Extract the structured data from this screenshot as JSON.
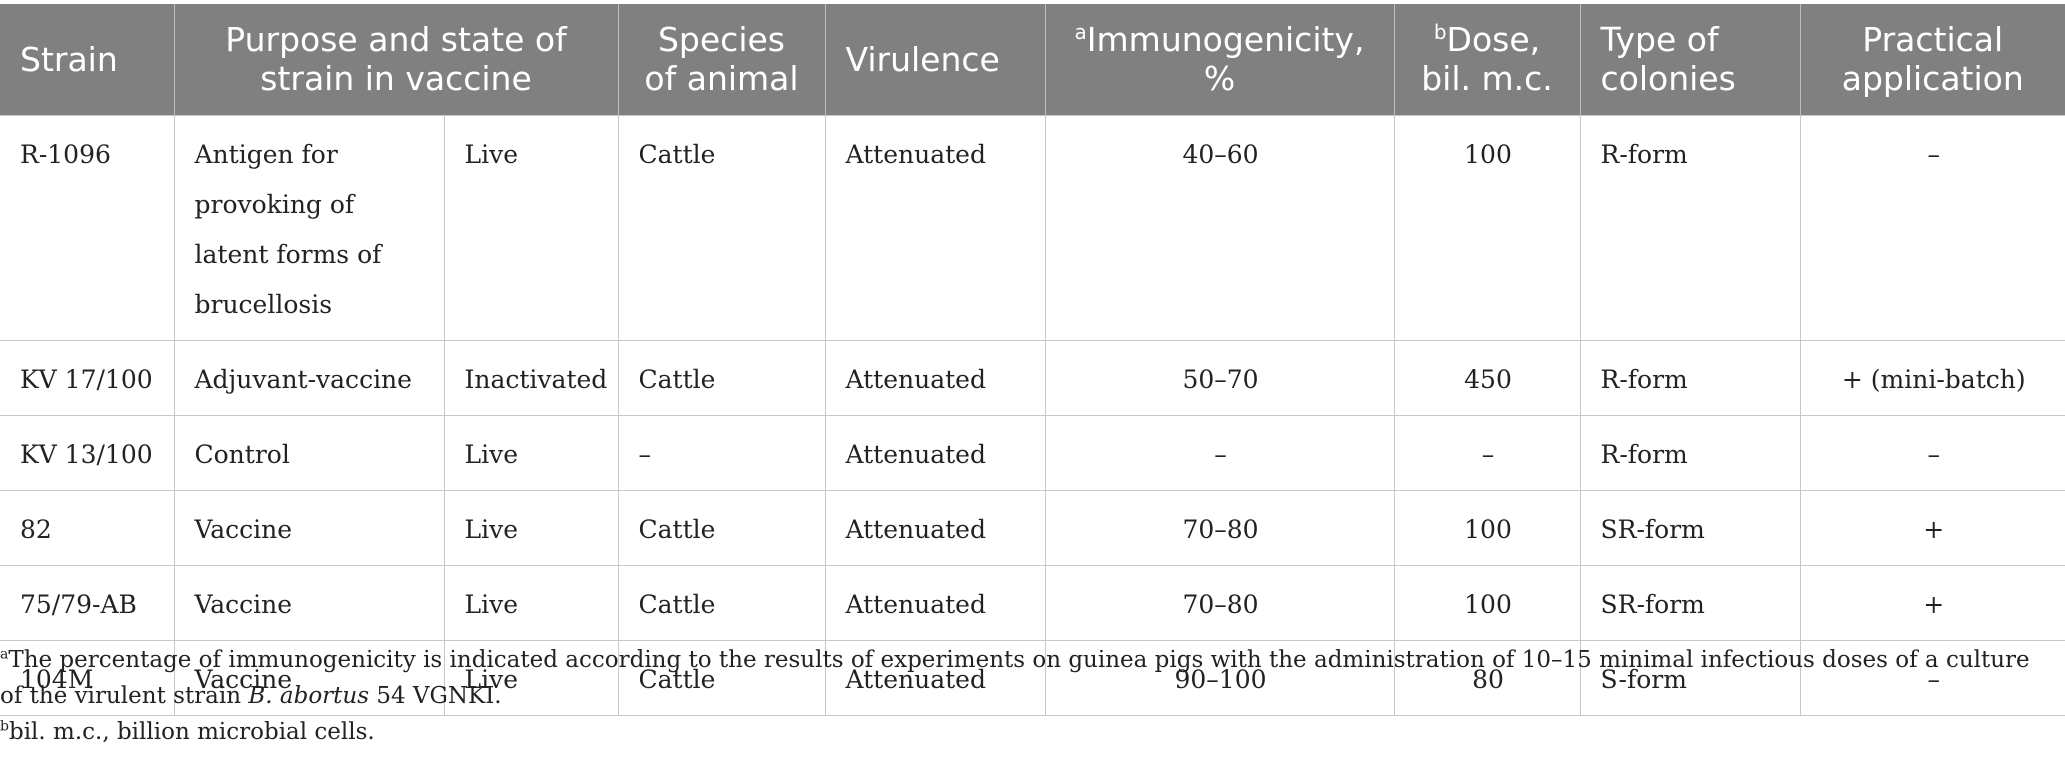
{
  "table": {
    "headers": {
      "strain": "Strain",
      "purpose_state": "Purpose and state of strain in vaccine",
      "species": "Species of animal",
      "virulence": "Virulence",
      "immunogenicity_mark": "a",
      "immunogenicity": "Immunogenicity, %",
      "dose_mark": "b",
      "dose": "Dose, bil. m.c.",
      "colonies": "Type of colonies",
      "application": "Practical application"
    },
    "rows": [
      {
        "strain": "R-1096",
        "purpose": "Antigen for provoking of latent forms of brucellosis",
        "state": "Live",
        "species": "Cattle",
        "virulence": "Attenuated",
        "immunogenicity": "40–60",
        "dose": "100",
        "colonies": "R-form",
        "application": "–"
      },
      {
        "strain": "KV 17/100",
        "purpose": "Adjuvant-vaccine",
        "state": "Inactivated",
        "species": "Cattle",
        "virulence": "Attenuated",
        "immunogenicity": "50–70",
        "dose": "450",
        "colonies": "R-form",
        "application": "+ (mini-batch)"
      },
      {
        "strain": "KV 13/100",
        "purpose": "Control",
        "state": "Live",
        "species": "–",
        "virulence": "Attenuated",
        "immunogenicity": "–",
        "dose": "–",
        "colonies": "R-form",
        "application": "–"
      },
      {
        "strain": "82",
        "purpose": "Vaccine",
        "state": "Live",
        "species": "Cattle",
        "virulence": "Attenuated",
        "immunogenicity": "70–80",
        "dose": "100",
        "colonies": "SR-form",
        "application": "+"
      },
      {
        "strain": "75/79-AB",
        "purpose": "Vaccine",
        "state": "Live",
        "species": "Cattle",
        "virulence": "Attenuated",
        "immunogenicity": "70–80",
        "dose": "100",
        "colonies": "SR-form",
        "application": "+"
      },
      {
        "strain": "104M",
        "purpose": "Vaccine",
        "state": "Live",
        "species": "Cattle",
        "virulence": "Attenuated",
        "immunogenicity": "90–100",
        "dose": "80",
        "colonies": "S-form",
        "application": "–"
      }
    ]
  },
  "footnotes": {
    "a_mark": "a",
    "a_text_before": "The percentage of immunogenicity is indicated according to the results of experiments on guinea pigs with the administration of 10–15 minimal infectious doses of a culture of the virulent strain ",
    "a_text_italic": "B. abortus",
    "a_text_after": " 54 VGNKI.",
    "b_mark": "b",
    "b_text": "bil. m.c., billion microbial cells."
  },
  "colors": {
    "header_background": "#808080",
    "header_text": "#ffffff",
    "body_text": "#222222",
    "grid_line": "#c8c8c8"
  }
}
